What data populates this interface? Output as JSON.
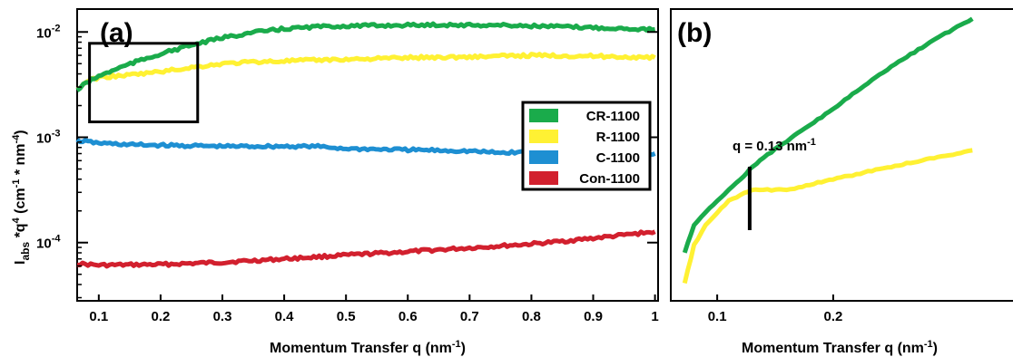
{
  "colors": {
    "CR-1100": "#1aab4b",
    "R-1100": "#fff133",
    "C-1100": "#1e8fd2",
    "Con-1100": "#d2202e"
  },
  "chart_data": [
    {
      "type": "line",
      "panel_label": "(a)",
      "xlabel": "Momentum Transfer q (nm⁻¹)",
      "ylabel": "I_abs*q^4 (cm^-1 * nm^-4)",
      "ylabel_parts": {
        "main": "I",
        "sub": "abs",
        "mid": " *q",
        "sup1": "4",
        "rest": " (cm",
        "sup2": "-1",
        "rest2": " * nm",
        "sup3": "-4",
        "end": ")"
      },
      "xlim": [
        0.065,
        1.005
      ],
      "ylim": [
        2.8e-05,
        0.0165
      ],
      "yscale": "log",
      "x_ticks": [
        "0.1",
        "0.2",
        "0.3",
        "0.4",
        "0.5",
        "0.6",
        "0.7",
        "0.8",
        "0.9",
        "1"
      ],
      "x_tick_values": [
        0.1,
        0.2,
        0.3,
        0.4,
        0.5,
        0.6,
        0.7,
        0.8,
        0.9,
        1.0
      ],
      "y_ticks": [
        {
          "value": 0.01,
          "base": "10",
          "exp": "-2"
        },
        {
          "value": 0.001,
          "base": "10",
          "exp": "-3"
        },
        {
          "value": 0.0001,
          "base": "10",
          "exp": "-4"
        }
      ],
      "legend": {
        "position": "right",
        "entries": [
          "CR-1100",
          "R-1100",
          "C-1100",
          "Con-1100"
        ]
      },
      "zoom_box": {
        "x": [
          0.085,
          0.26
        ],
        "y": [
          0.0014,
          0.0078
        ]
      },
      "series": [
        {
          "name": "CR-1100",
          "x": [
            0.065,
            0.08,
            0.1,
            0.13,
            0.16,
            0.2,
            0.25,
            0.3,
            0.35,
            0.4,
            0.45,
            0.5,
            0.55,
            0.6,
            0.65,
            0.7,
            0.75,
            0.8,
            0.85,
            0.9,
            0.95,
            1.0
          ],
          "y": [
            0.0028,
            0.0033,
            0.0038,
            0.0045,
            0.0052,
            0.0062,
            0.0075,
            0.0088,
            0.0099,
            0.0107,
            0.0112,
            0.0114,
            0.0115,
            0.0116,
            0.0117,
            0.0116,
            0.0116,
            0.0114,
            0.0112,
            0.011,
            0.0108,
            0.0106
          ]
        },
        {
          "name": "R-1100",
          "x": [
            0.065,
            0.08,
            0.1,
            0.15,
            0.2,
            0.25,
            0.3,
            0.35,
            0.4,
            0.5,
            0.6,
            0.7,
            0.8,
            0.9,
            1.0
          ],
          "y": [
            0.0028,
            0.0034,
            0.0037,
            0.0039,
            0.0042,
            0.0046,
            0.005,
            0.0052,
            0.0053,
            0.0055,
            0.0057,
            0.0058,
            0.006,
            0.0059,
            0.0057
          ]
        },
        {
          "name": "C-1100",
          "x": [
            0.065,
            0.1,
            0.15,
            0.2,
            0.3,
            0.4,
            0.45,
            0.5,
            0.6,
            0.7,
            0.75,
            0.8,
            0.85,
            0.9,
            0.95,
            1.0
          ],
          "y": [
            0.00093,
            0.00088,
            0.00085,
            0.00084,
            0.00082,
            0.00082,
            0.00082,
            0.00078,
            0.00076,
            0.00074,
            0.00071,
            0.00073,
            0.00074,
            0.00073,
            0.00072,
            0.0007
          ]
        },
        {
          "name": "Con-1100",
          "x": [
            0.065,
            0.1,
            0.2,
            0.3,
            0.4,
            0.5,
            0.6,
            0.7,
            0.8,
            0.85,
            0.9,
            0.95,
            1.0
          ],
          "y": [
            6.3e-05,
            6.1e-05,
            6.2e-05,
            6.5e-05,
            7e-05,
            7.6e-05,
            8.2e-05,
            8.9e-05,
            9.7e-05,
            0.000103,
            0.00011,
            0.000118,
            0.000127
          ]
        }
      ]
    },
    {
      "type": "line",
      "panel_label": "(b)",
      "xlabel": "Momentum Transfer q (nm⁻¹)",
      "xlim": [
        0.06,
        0.355
      ],
      "ylim": [
        0.0024,
        0.0092
      ],
      "x_ticks": [
        "0.1",
        "0.2"
      ],
      "x_tick_values": [
        0.1,
        0.2
      ],
      "annotation": {
        "text": "q = 0.13 nm",
        "sup": "-1",
        "x": 0.128
      },
      "series": [
        {
          "name": "CR-1100",
          "x": [
            0.072,
            0.08,
            0.09,
            0.1,
            0.11,
            0.12,
            0.128,
            0.14,
            0.16,
            0.18,
            0.2,
            0.22,
            0.24,
            0.26,
            0.28,
            0.3,
            0.32
          ],
          "y": [
            0.003,
            0.0034,
            0.0036,
            0.0038,
            0.004,
            0.0042,
            0.0044,
            0.00465,
            0.005,
            0.0054,
            0.0058,
            0.0063,
            0.0068,
            0.0073,
            0.0078,
            0.0083,
            0.0088
          ]
        },
        {
          "name": "R-1100",
          "x": [
            0.072,
            0.08,
            0.09,
            0.1,
            0.11,
            0.12,
            0.13,
            0.14,
            0.16,
            0.18,
            0.2,
            0.22,
            0.24,
            0.26,
            0.28,
            0.3,
            0.32
          ],
          "y": [
            0.0026,
            0.0031,
            0.0034,
            0.0036,
            0.0038,
            0.0039,
            0.004,
            0.004,
            0.004,
            0.0041,
            0.0042,
            0.0043,
            0.0044,
            0.0045,
            0.0046,
            0.0047,
            0.0048
          ]
        }
      ]
    }
  ]
}
